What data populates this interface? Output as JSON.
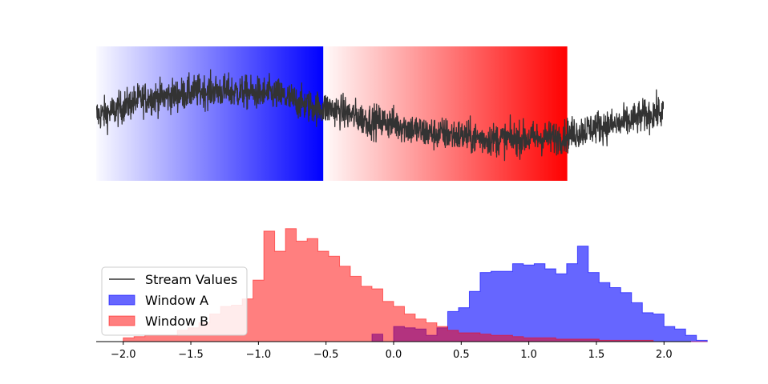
{
  "chart_data": [
    {
      "type": "line",
      "name_hint": "stream",
      "x_range": [
        0,
        2000
      ],
      "y_range": [
        -2.5,
        2.5
      ],
      "axes_visible": false,
      "grid": false,
      "trend_points": [
        [
          0,
          -0.05
        ],
        [
          200,
          0.6
        ],
        [
          400,
          0.85
        ],
        [
          600,
          0.75
        ],
        [
          800,
          0.2
        ],
        [
          1000,
          -0.3
        ],
        [
          1200,
          -0.75
        ],
        [
          1400,
          -0.95
        ],
        [
          1600,
          -0.9
        ],
        [
          1800,
          -0.45
        ],
        [
          2000,
          0.05
        ]
      ],
      "noise_amplitude": 0.55,
      "windows": [
        {
          "label": "Window A",
          "x_start": 0,
          "x_end": 800,
          "color": "#0000ff",
          "gradient": "transparent-to-opaque"
        },
        {
          "label": "Window B",
          "x_start": 800,
          "x_end": 1660,
          "color": "#ff0000",
          "gradient": "transparent-to-opaque"
        }
      ],
      "line_color": "#333333"
    },
    {
      "type": "histogram",
      "xlim": [
        -2.2,
        2.2
      ],
      "x_ticks": [
        "−2.0",
        "−1.5",
        "−1.0",
        "−0.5",
        "0.0",
        "0.5",
        "1.0",
        "1.5",
        "2.0"
      ],
      "x_tick_values": [
        -2.0,
        -1.5,
        -1.0,
        -0.5,
        0.0,
        0.5,
        1.0,
        1.5,
        2.0
      ],
      "bin_start": -2.0,
      "bin_width": 0.08,
      "ylim": [
        0,
        100
      ],
      "grid": false,
      "legend_position": "lower-left",
      "series": [
        {
          "name": "Window A",
          "color": "#0000ff",
          "alpha": 0.6,
          "counts": [
            0,
            0,
            0,
            0,
            0,
            0,
            0,
            0,
            0,
            0,
            0,
            0,
            0,
            0,
            0,
            0,
            0,
            0,
            0,
            0,
            0,
            0,
            0,
            6,
            0,
            12,
            11,
            10,
            5,
            11,
            24,
            27,
            40,
            55,
            56,
            56,
            62,
            61,
            62,
            58,
            54,
            62,
            76,
            55,
            47,
            43,
            39,
            31,
            23,
            22,
            12,
            10,
            5,
            1
          ]
        },
        {
          "name": "Window B",
          "color": "#ff0000",
          "alpha": 0.5,
          "counts": [
            3,
            4,
            5,
            5,
            5,
            9,
            11,
            15,
            22,
            28,
            29,
            34,
            49,
            88,
            72,
            90,
            80,
            82,
            72,
            68,
            60,
            52,
            44,
            42,
            32,
            28,
            22,
            18,
            15,
            12,
            9,
            7,
            7,
            6,
            5,
            5,
            4,
            3,
            3,
            3,
            2,
            2,
            2,
            2,
            1,
            1,
            1,
            1,
            1,
            0,
            0,
            0,
            0,
            0
          ]
        }
      ],
      "legend": [
        {
          "label": "Stream Values",
          "kind": "line",
          "color": "#333333"
        },
        {
          "label": "Window A",
          "kind": "patch",
          "color": "#0000ff"
        },
        {
          "label": "Window B",
          "kind": "patch",
          "color": "#ff0000"
        }
      ]
    }
  ]
}
